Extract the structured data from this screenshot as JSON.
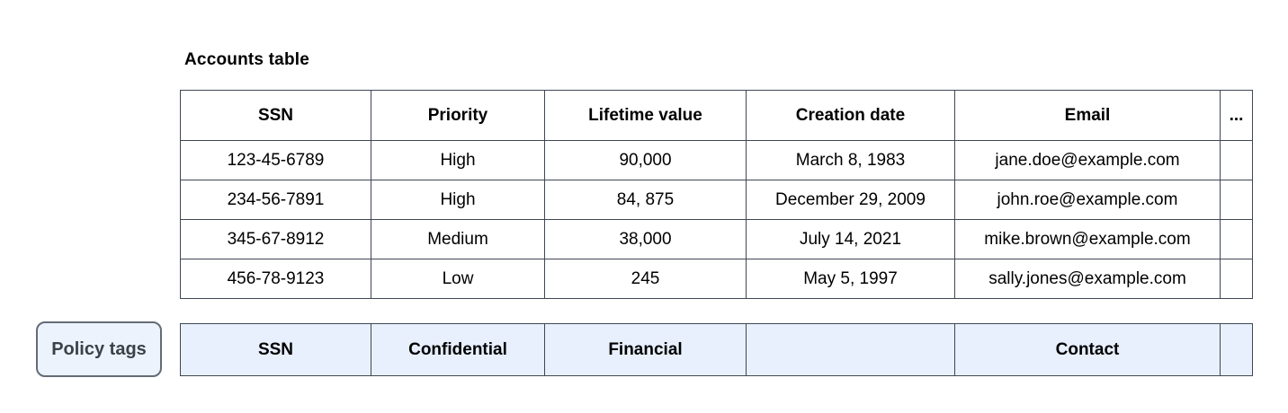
{
  "title": "Accounts table",
  "accounts_table": {
    "headers": [
      "SSN",
      "Priority",
      "Lifetime value",
      "Creation date",
      "Email",
      "..."
    ],
    "rows": [
      [
        "123-45-6789",
        "High",
        "90,000",
        "March 8, 1983",
        "jane.doe@example.com",
        ""
      ],
      [
        "234-56-7891",
        "High",
        "84, 875",
        "December 29, 2009",
        "john.roe@example.com",
        ""
      ],
      [
        "345-67-8912",
        "Medium",
        "38,000",
        "July 14, 2021",
        "mike.brown@example.com",
        ""
      ],
      [
        "456-78-9123",
        "Low",
        "245",
        "May 5, 1997",
        "sally.jones@example.com",
        ""
      ]
    ]
  },
  "policy_tags": {
    "button_label": "Policy tags",
    "tags": [
      "SSN",
      "Confidential",
      "Financial",
      "",
      "Contact",
      ""
    ]
  },
  "colors": {
    "table_border": "#3f4753",
    "policy_row_bg": "#e8f0fe",
    "policy_button_bg": "#edf3fd",
    "policy_button_border": "#646b76",
    "policy_button_text": "#3c4148"
  }
}
